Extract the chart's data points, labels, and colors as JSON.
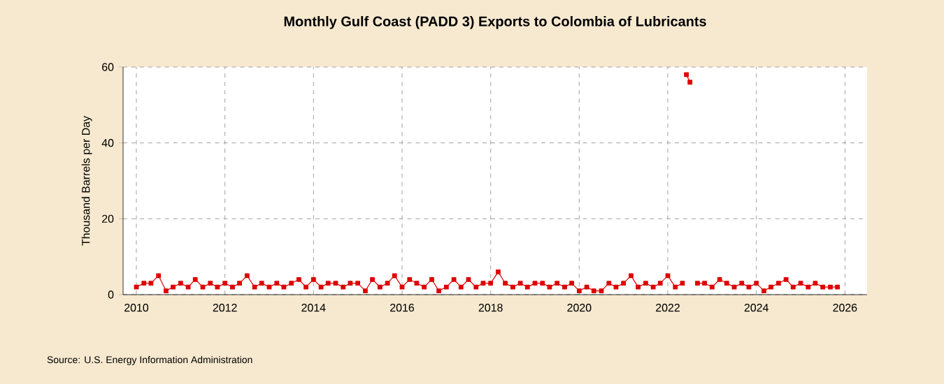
{
  "chart_data": {
    "type": "line",
    "title": "Monthly Gulf Coast (PADD 3) Exports to Colombia of Lubricants",
    "ylabel": "Thousand Barrels per Day",
    "annotations": [
      "Source: U.S. Energy Information Administration"
    ],
    "xlim": [
      2009.7,
      2026.5
    ],
    "xticks": [
      2010,
      2012,
      2014,
      2016,
      2018,
      2020,
      2022,
      2024,
      2026
    ],
    "ylim": [
      0,
      60
    ],
    "yticks": [
      0,
      20,
      40,
      60
    ],
    "grid": true,
    "marker": "square",
    "line_style": "solid",
    "series": [
      {
        "color": "#dd0000",
        "x": [
          2010.0,
          2010.17,
          2010.33,
          2010.5,
          2010.67,
          2010.83,
          2011.0,
          2011.17,
          2011.33,
          2011.5,
          2011.67,
          2011.83,
          2012.0,
          2012.17,
          2012.33,
          2012.5,
          2012.67,
          2012.83,
          2013.0,
          2013.17,
          2013.33,
          2013.5,
          2013.67,
          2013.83,
          2014.0,
          2014.17,
          2014.33,
          2014.5,
          2014.67,
          2014.83,
          2015.0,
          2015.17,
          2015.33,
          2015.5,
          2015.67,
          2015.83,
          2016.0,
          2016.17,
          2016.33,
          2016.5,
          2016.67,
          2016.83,
          2017.0,
          2017.17,
          2017.33,
          2017.5,
          2017.67,
          2017.83,
          2018.0,
          2018.17,
          2018.33,
          2018.5,
          2018.67,
          2018.83,
          2019.0,
          2019.17,
          2019.33,
          2019.5,
          2019.67,
          2019.83,
          2020.0,
          2020.17,
          2020.33,
          2020.5,
          2020.67,
          2020.83,
          2021.0,
          2021.17,
          2021.33,
          2021.5,
          2021.67,
          2021.83,
          2022.0,
          2022.17,
          2022.33,
          2022.38,
          2022.42,
          2022.5,
          2022.58,
          2022.67,
          2022.83,
          2023.0,
          2023.17,
          2023.33,
          2023.5,
          2023.67,
          2023.83,
          2024.0,
          2024.17,
          2024.33,
          2024.5,
          2024.67,
          2024.83,
          2025.0,
          2025.17,
          2025.33,
          2025.5,
          2025.67,
          2025.83
        ],
        "values": [
          2,
          3,
          3,
          5,
          1,
          2,
          3,
          2,
          4,
          2,
          3,
          2,
          3,
          2,
          3,
          5,
          2,
          3,
          2,
          3,
          2,
          3,
          4,
          2,
          4,
          2,
          3,
          3,
          2,
          3,
          3,
          1,
          4,
          2,
          3,
          5,
          2,
          4,
          3,
          2,
          4,
          1,
          2,
          4,
          2,
          4,
          2,
          3,
          3,
          6,
          3,
          2,
          3,
          2,
          3,
          3,
          2,
          3,
          2,
          3,
          1,
          2,
          1,
          1,
          3,
          2,
          3,
          5,
          2,
          3,
          2,
          3,
          5,
          2,
          3,
          null,
          58,
          56,
          null,
          3,
          3,
          2,
          4,
          3,
          2,
          3,
          2,
          3,
          1,
          2,
          3,
          4,
          2,
          3,
          2,
          3,
          2,
          2,
          2
        ]
      }
    ]
  }
}
